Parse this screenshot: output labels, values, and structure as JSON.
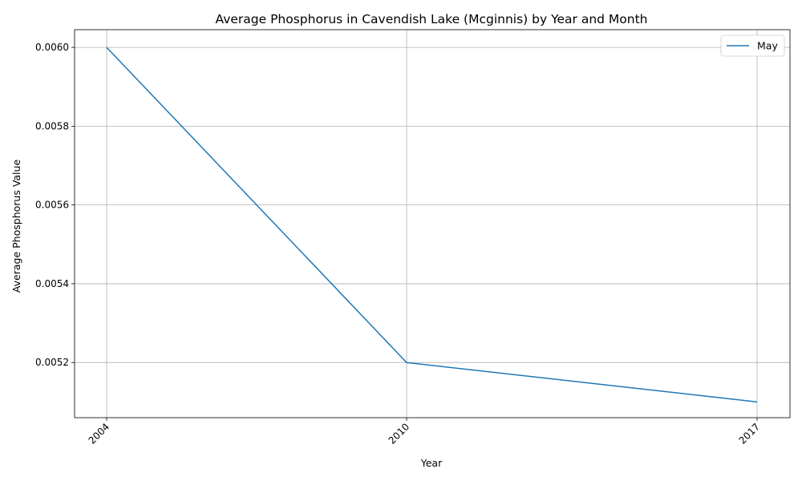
{
  "chart_data": {
    "type": "line",
    "title": "Average Phosphorus in Cavendish Lake (Mcginnis) by Year and Month",
    "xlabel": "Year",
    "ylabel": "Average Phosphorus Value",
    "x": [
      "2004",
      "2010",
      "2017"
    ],
    "series": [
      {
        "name": "May",
        "color": "#1f77b4",
        "values": [
          0.006,
          0.0052,
          0.0051
        ]
      }
    ],
    "ylim": [
      0.00506,
      0.006045
    ],
    "yticks": [
      "0.0052",
      "0.0054",
      "0.0056",
      "0.0058",
      "0.0060"
    ],
    "grid": true,
    "legend": "top-right"
  }
}
